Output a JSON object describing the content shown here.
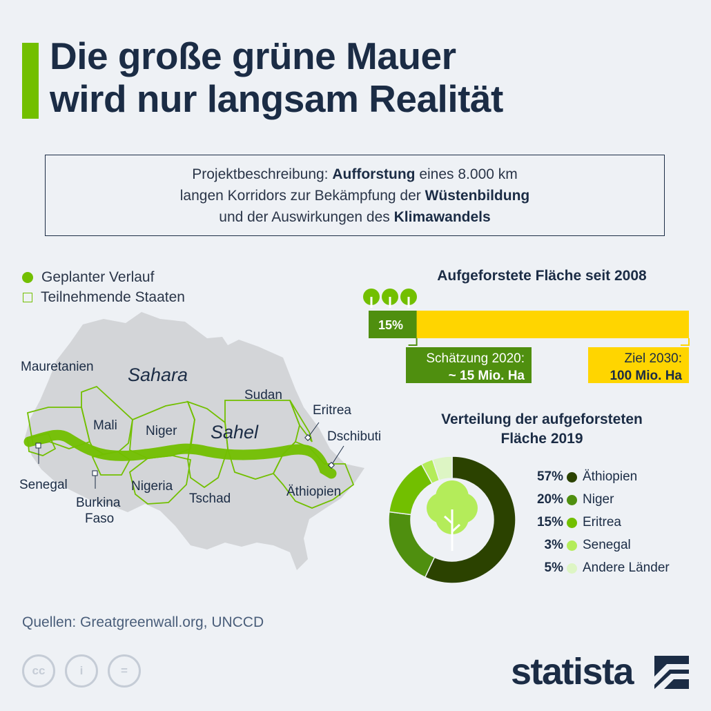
{
  "title": {
    "line1": "Die große grüne Mauer",
    "line2": "wird nur langsam Realität"
  },
  "description": {
    "parts": [
      "Projektbeschreibung: ",
      "Aufforstung",
      " eines 8.000 km",
      "langen Korridors zur Bekämpfung der ",
      "Wüstenbildung",
      "und der Auswirkungen des ",
      "Klimawandels"
    ]
  },
  "legend": {
    "planned_route": "Geplanter Verlauf",
    "participating_states": "Teilnehmende Staaten"
  },
  "map": {
    "labels": {
      "sahara": "Sahara",
      "sahel": "Sahel",
      "mauretanien": "Mauretanien",
      "mali": "Mali",
      "niger": "Niger",
      "sudan": "Sudan",
      "eritrea": "Eritrea",
      "dschibuti": "Dschibuti",
      "senegal": "Senegal",
      "burkina1": "Burkina",
      "burkina2": "Faso",
      "nigeria": "Nigeria",
      "tschad": "Tschad",
      "aethiopien": "Äthiopien"
    },
    "colors": {
      "land": "#d3d5d8",
      "route": "#72bf00",
      "border": "#72bf00"
    }
  },
  "chart_data": [
    {
      "type": "bar",
      "title": "Aufgeforstete Fläche seit 2008",
      "progress_percent": 15,
      "progress_label": "15%",
      "callouts": {
        "estimate_2020_line1": "Schätzung 2020:",
        "estimate_2020_line2": "~ 15 Mio. Ha",
        "goal_2030_line1": "Ziel 2030:",
        "goal_2030_line2": "100 Mio. Ha"
      },
      "values_mio_ha": {
        "estimate_2020": 15,
        "goal_2030": 100
      },
      "colors": {
        "progress": "#4f8f0f",
        "goal": "#ffd500"
      }
    },
    {
      "type": "pie",
      "title_line1": "Verteilung der aufgeforsteten",
      "title_line2": "Fläche 2019",
      "slices": [
        {
          "label": "Äthiopien",
          "value": 57,
          "pct_label": "57%",
          "color": "#2b4200"
        },
        {
          "label": "Niger",
          "value": 20,
          "pct_label": "20%",
          "color": "#4f8f0f"
        },
        {
          "label": "Eritrea",
          "value": 15,
          "pct_label": "15%",
          "color": "#72bf00"
        },
        {
          "label": "Senegal",
          "value": 3,
          "pct_label": "3%",
          "color": "#b4ec5a"
        },
        {
          "label": "Andere Länder",
          "value": 5,
          "pct_label": "5%",
          "color": "#ddf5c4"
        }
      ]
    }
  ],
  "footer": {
    "source": "Quellen: Greatgreenwall.org, UNCCD",
    "license_icons": [
      "cc-icon",
      "attribution-icon",
      "no-derivatives-icon"
    ],
    "brand": "statista"
  }
}
